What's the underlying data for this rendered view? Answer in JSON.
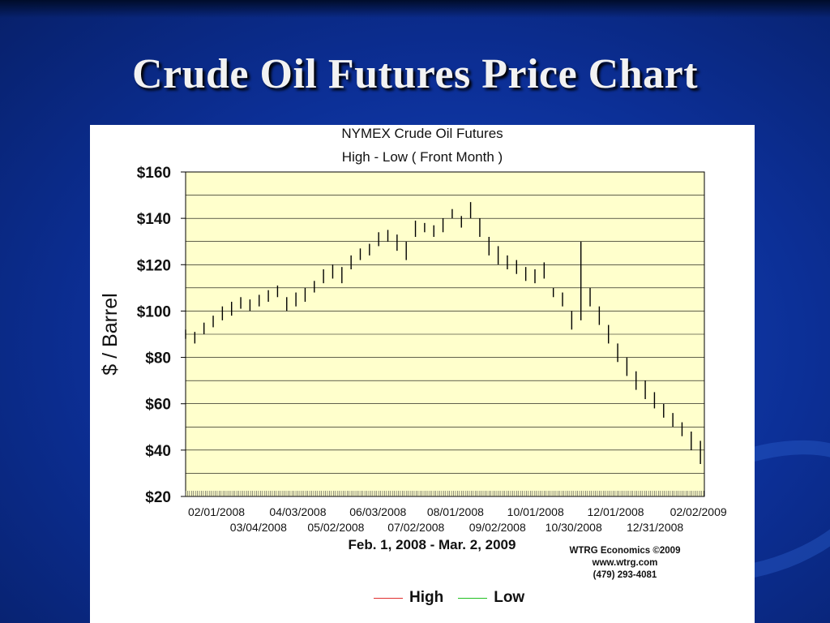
{
  "slide": {
    "title": "Crude Oil Futures Price Chart"
  },
  "credit": {
    "line1": "WTRG Economics  ©2009",
    "line2": "www.wtrg.com",
    "line3": "(479) 293-4081"
  },
  "colors": {
    "plot_background": "#FFFFCC",
    "bars": "#000000",
    "high": "#E03030",
    "low": "#20C020"
  },
  "chart_data": {
    "type": "bar",
    "title": "NYMEX Crude Oil Futures",
    "subtitle": "High - Low ( Front Month )",
    "xlabel": "Feb. 1, 2008 - Mar. 2, 2009",
    "ylabel": "$ / Barrel",
    "ylim": [
      20,
      160
    ],
    "ytick_values": [
      20,
      40,
      60,
      80,
      100,
      120,
      140,
      160
    ],
    "ytick_labels": [
      "$20",
      "$40",
      "$60",
      "$80",
      "$100",
      "$120",
      "$140",
      "$160"
    ],
    "xlim": [
      "2008-02-01",
      "2009-03-02"
    ],
    "xtick_dates": [
      "2008-02-01",
      "2008-03-04",
      "2008-04-03",
      "2008-05-02",
      "2008-06-03",
      "2008-07-02",
      "2008-08-01",
      "2008-09-02",
      "2008-10-01",
      "2008-10-30",
      "2008-12-01",
      "2008-12-31",
      "2009-02-02"
    ],
    "xtick_labels": [
      "02/01/2008",
      "03/04/2008",
      "04/03/2008",
      "05/02/2008",
      "06/03/2008",
      "07/02/2008",
      "08/01/2008",
      "09/02/2008",
      "10/01/2008",
      "10/30/2008",
      "12/01/2008",
      "12/31/2008",
      "02/02/2009"
    ],
    "grid": true,
    "legend": "bottom-center",
    "series": [
      {
        "name": "High",
        "color": "#E03030"
      },
      {
        "name": "Low",
        "color": "#20C020"
      }
    ],
    "points": [
      {
        "x": "2008-02-01",
        "low": 88,
        "high": 92
      },
      {
        "x": "2008-02-08",
        "low": 86,
        "high": 91
      },
      {
        "x": "2008-02-15",
        "low": 90,
        "high": 95
      },
      {
        "x": "2008-02-22",
        "low": 93,
        "high": 98
      },
      {
        "x": "2008-02-29",
        "low": 96,
        "high": 102
      },
      {
        "x": "2008-03-07",
        "low": 98,
        "high": 104
      },
      {
        "x": "2008-03-14",
        "low": 101,
        "high": 106
      },
      {
        "x": "2008-03-21",
        "low": 100,
        "high": 105
      },
      {
        "x": "2008-03-28",
        "low": 102,
        "high": 107
      },
      {
        "x": "2008-04-04",
        "low": 104,
        "high": 109
      },
      {
        "x": "2008-04-11",
        "low": 106,
        "high": 111
      },
      {
        "x": "2008-04-18",
        "low": 100,
        "high": 106
      },
      {
        "x": "2008-04-25",
        "low": 102,
        "high": 108
      },
      {
        "x": "2008-05-02",
        "low": 104,
        "high": 110
      },
      {
        "x": "2008-05-09",
        "low": 108,
        "high": 113
      },
      {
        "x": "2008-05-16",
        "low": 112,
        "high": 118
      },
      {
        "x": "2008-05-23",
        "low": 114,
        "high": 120
      },
      {
        "x": "2008-05-30",
        "low": 112,
        "high": 119
      },
      {
        "x": "2008-06-06",
        "low": 118,
        "high": 124
      },
      {
        "x": "2008-06-13",
        "low": 122,
        "high": 127
      },
      {
        "x": "2008-06-20",
        "low": 124,
        "high": 129
      },
      {
        "x": "2008-06-27",
        "low": 128,
        "high": 134
      },
      {
        "x": "2008-07-04",
        "low": 130,
        "high": 135
      },
      {
        "x": "2008-07-11",
        "low": 126,
        "high": 133
      },
      {
        "x": "2008-07-18",
        "low": 122,
        "high": 130
      },
      {
        "x": "2008-07-25",
        "low": 132,
        "high": 139
      },
      {
        "x": "2008-08-01",
        "low": 134,
        "high": 138
      },
      {
        "x": "2008-08-08",
        "low": 132,
        "high": 137
      },
      {
        "x": "2008-08-15",
        "low": 134,
        "high": 140
      },
      {
        "x": "2008-08-22",
        "low": 140,
        "high": 144
      },
      {
        "x": "2008-08-29",
        "low": 136,
        "high": 141
      },
      {
        "x": "2008-09-05",
        "low": 140,
        "high": 147
      },
      {
        "x": "2008-09-12",
        "low": 132,
        "high": 140
      },
      {
        "x": "2008-09-19",
        "low": 124,
        "high": 132
      },
      {
        "x": "2008-09-26",
        "low": 120,
        "high": 128
      },
      {
        "x": "2008-10-03",
        "low": 118,
        "high": 124
      },
      {
        "x": "2008-10-10",
        "low": 116,
        "high": 122
      },
      {
        "x": "2008-10-17",
        "low": 113,
        "high": 119
      },
      {
        "x": "2008-10-24",
        "low": 112,
        "high": 118
      },
      {
        "x": "2008-10-31",
        "low": 114,
        "high": 121
      },
      {
        "x": "2008-11-07",
        "low": 106,
        "high": 110
      },
      {
        "x": "2008-11-14",
        "low": 102,
        "high": 108
      },
      {
        "x": "2008-11-21",
        "low": 92,
        "high": 100
      },
      {
        "x": "2008-11-28",
        "low": 96,
        "high": 130
      },
      {
        "x": "2008-12-05",
        "low": 102,
        "high": 110
      },
      {
        "x": "2008-12-12",
        "low": 94,
        "high": 102
      },
      {
        "x": "2008-12-19",
        "low": 86,
        "high": 94
      },
      {
        "x": "2008-12-26",
        "low": 78,
        "high": 86
      },
      {
        "x": "2009-01-02",
        "low": 72,
        "high": 80
      },
      {
        "x": "2009-01-09",
        "low": 66,
        "high": 74
      },
      {
        "x": "2009-01-16",
        "low": 62,
        "high": 70
      },
      {
        "x": "2009-01-23",
        "low": 58,
        "high": 65
      },
      {
        "x": "2009-01-30",
        "low": 54,
        "high": 60
      },
      {
        "x": "2009-02-06",
        "low": 50,
        "high": 56
      },
      {
        "x": "2009-02-13",
        "low": 46,
        "high": 52
      },
      {
        "x": "2009-02-20",
        "low": 40,
        "high": 48
      },
      {
        "x": "2009-02-27",
        "low": 34,
        "high": 44
      }
    ]
  }
}
